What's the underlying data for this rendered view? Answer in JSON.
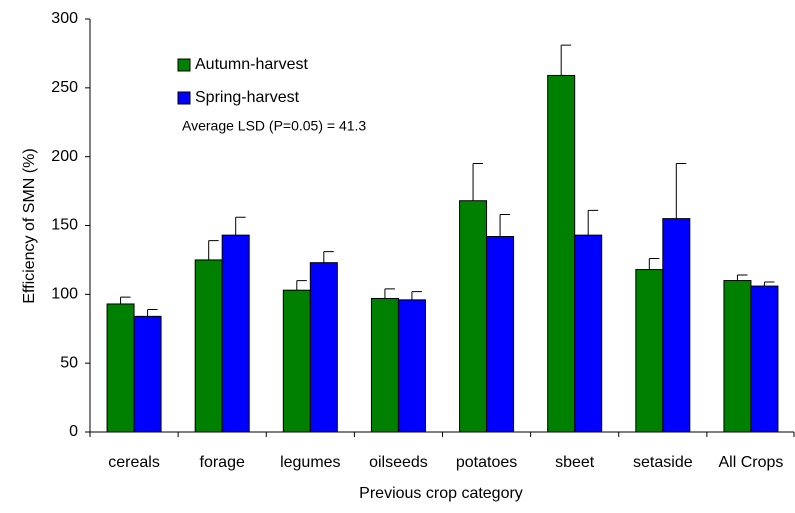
{
  "chart_data": {
    "type": "bar",
    "x_label": "Previous crop category",
    "y_label": "Efficiency of SMN (%)",
    "annotation": "Average LSD (P=0.05) = 41.3",
    "categories": [
      "cereals",
      "forage",
      "legumes",
      "oilseeds",
      "potatoes",
      "sbeet",
      "setaside",
      "All Crops"
    ],
    "series": [
      {
        "name": "Autumn-harvest",
        "color": "#008000",
        "values": [
          93,
          125,
          103,
          97,
          168,
          259,
          118,
          110
        ],
        "errors": [
          5,
          14,
          7,
          7,
          27,
          22,
          8,
          4
        ]
      },
      {
        "name": "Spring-harvest",
        "color": "#0000ff",
        "values": [
          84,
          143,
          123,
          96,
          142,
          143,
          155,
          106
        ],
        "errors": [
          5,
          13,
          8,
          6,
          16,
          18,
          40,
          3
        ]
      }
    ],
    "ylim": [
      0,
      300
    ],
    "yticks": [
      0,
      50,
      100,
      150,
      200,
      250,
      300
    ]
  }
}
